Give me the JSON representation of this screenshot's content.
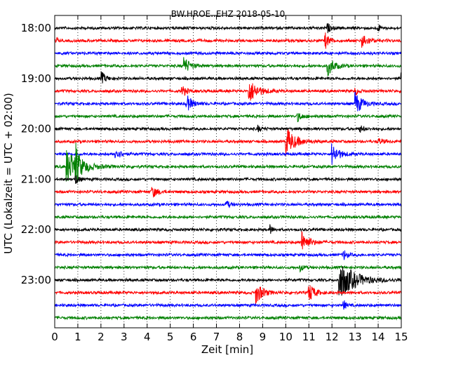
{
  "chart_data": {
    "type": "line",
    "title": "BW.HROE..EHZ 2018-05-10",
    "xlabel": "Zeit  [min]",
    "ylabel": "UTC (Lokalzeit = UTC + 02:00)",
    "xlim": [
      0,
      15
    ],
    "x_ticks": [
      "0",
      "1",
      "2",
      "3",
      "4",
      "5",
      "6",
      "7",
      "8",
      "9",
      "10",
      "11",
      "12",
      "13",
      "14",
      "15"
    ],
    "y_ticks": [
      "18:00",
      "19:00",
      "20:00",
      "21:00",
      "22:00",
      "23:00"
    ],
    "grid": true,
    "trace_interval_min": 15,
    "series_colors": [
      "#000000",
      "#ff0000",
      "#0000ff",
      "#008000"
    ],
    "traces": [
      {
        "start": "18:00",
        "color": "#000000",
        "events": [
          {
            "t": 11.8,
            "a": 0.5,
            "d": 0.3
          },
          {
            "t": 14.0,
            "a": 0.4,
            "d": 0.2
          }
        ]
      },
      {
        "start": "18:15",
        "color": "#ff0000",
        "events": [
          {
            "t": 0.05,
            "a": 0.8,
            "d": 0.1
          },
          {
            "t": 11.7,
            "a": 0.8,
            "d": 0.4
          },
          {
            "t": 13.3,
            "a": 0.8,
            "d": 0.5
          }
        ]
      },
      {
        "start": "18:30",
        "color": "#0000ff",
        "events": []
      },
      {
        "start": "18:45",
        "color": "#008000",
        "events": [
          {
            "t": 5.6,
            "a": 0.9,
            "d": 0.5
          },
          {
            "t": 11.8,
            "a": 1.0,
            "d": 0.6
          }
        ]
      },
      {
        "start": "19:00",
        "color": "#000000",
        "events": [
          {
            "t": 2.0,
            "a": 0.7,
            "d": 0.4
          },
          {
            "t": 15.0,
            "a": 0.6,
            "d": 0.1
          }
        ]
      },
      {
        "start": "19:15",
        "color": "#ff0000",
        "events": [
          {
            "t": 5.5,
            "a": 0.6,
            "d": 0.4
          },
          {
            "t": 8.4,
            "a": 1.2,
            "d": 0.8
          },
          {
            "t": 13.0,
            "a": 0.4,
            "d": 0.3
          }
        ]
      },
      {
        "start": "19:30",
        "color": "#0000ff",
        "events": [
          {
            "t": 5.7,
            "a": 0.9,
            "d": 0.5
          },
          {
            "t": 13.0,
            "a": 1.2,
            "d": 0.6
          }
        ]
      },
      {
        "start": "19:45",
        "color": "#008000",
        "events": [
          {
            "t": 10.5,
            "a": 0.5,
            "d": 0.4
          }
        ]
      },
      {
        "start": "20:00",
        "color": "#000000",
        "events": [
          {
            "t": 8.8,
            "a": 0.3,
            "d": 0.3
          },
          {
            "t": 13.2,
            "a": 0.4,
            "d": 0.3
          }
        ]
      },
      {
        "start": "20:15",
        "color": "#ff0000",
        "events": [
          {
            "t": 10.0,
            "a": 1.5,
            "d": 0.8
          },
          {
            "t": 14.0,
            "a": 0.3,
            "d": 0.5
          }
        ]
      },
      {
        "start": "20:30",
        "color": "#0000ff",
        "events": [
          {
            "t": 2.6,
            "a": 0.8,
            "d": 0.4
          },
          {
            "t": 12.0,
            "a": 1.1,
            "d": 0.6
          }
        ]
      },
      {
        "start": "20:45",
        "color": "#008000",
        "events": [
          {
            "t": 0.5,
            "a": 1.8,
            "d": 1.2
          },
          {
            "t": 0.9,
            "a": 1.8,
            "d": 0.3
          }
        ]
      },
      {
        "start": "21:00",
        "color": "#000000",
        "events": [
          {
            "t": 0.9,
            "a": 0.5,
            "d": 0.3
          }
        ]
      },
      {
        "start": "21:15",
        "color": "#ff0000",
        "events": [
          {
            "t": 4.2,
            "a": 0.6,
            "d": 0.5
          }
        ]
      },
      {
        "start": "21:30",
        "color": "#0000ff",
        "events": [
          {
            "t": 7.4,
            "a": 0.5,
            "d": 0.3
          }
        ]
      },
      {
        "start": "21:45",
        "color": "#008000",
        "events": []
      },
      {
        "start": "22:00",
        "color": "#000000",
        "events": [
          {
            "t": 9.3,
            "a": 0.6,
            "d": 0.2
          }
        ]
      },
      {
        "start": "22:15",
        "color": "#ff0000",
        "events": [
          {
            "t": 10.7,
            "a": 1.1,
            "d": 0.6
          }
        ]
      },
      {
        "start": "22:30",
        "color": "#0000ff",
        "events": [
          {
            "t": 12.5,
            "a": 0.6,
            "d": 0.3
          }
        ]
      },
      {
        "start": "22:45",
        "color": "#008000",
        "events": [
          {
            "t": 10.6,
            "a": 0.4,
            "d": 0.3
          }
        ]
      },
      {
        "start": "23:00",
        "color": "#000000",
        "events": [
          {
            "t": 12.3,
            "a": 2.0,
            "d": 1.4
          }
        ]
      },
      {
        "start": "23:15",
        "color": "#ff0000",
        "events": [
          {
            "t": 8.7,
            "a": 1.2,
            "d": 0.6
          },
          {
            "t": 11.0,
            "a": 1.0,
            "d": 0.5
          }
        ]
      },
      {
        "start": "23:30",
        "color": "#0000ff",
        "events": [
          {
            "t": 12.5,
            "a": 0.6,
            "d": 0.2
          }
        ]
      },
      {
        "start": "23:45",
        "color": "#008000",
        "events": []
      }
    ]
  }
}
